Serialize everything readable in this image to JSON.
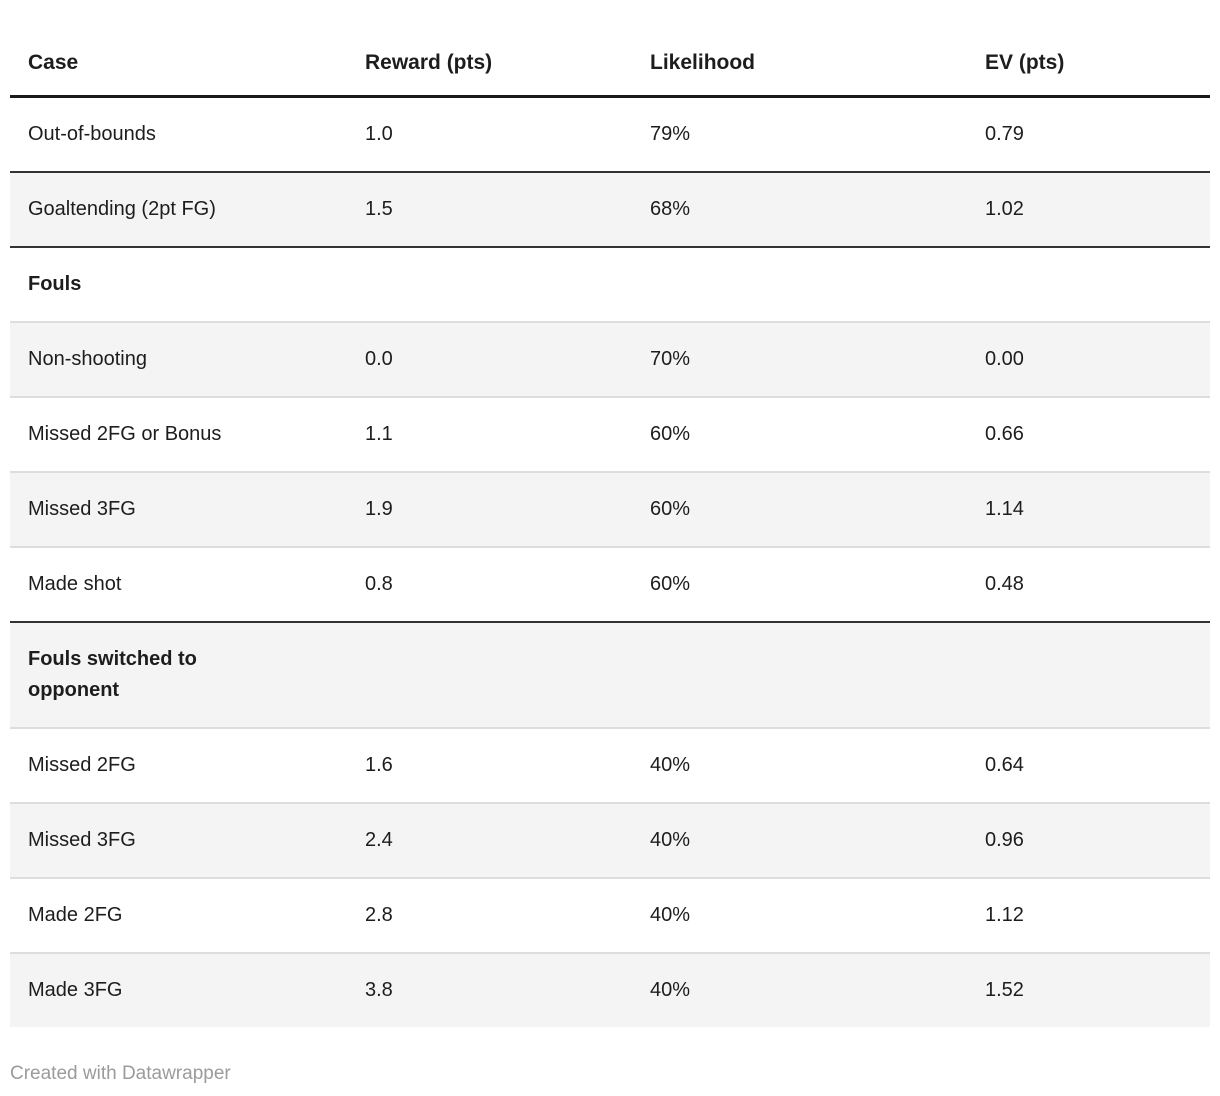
{
  "footer": {
    "attribution": "Created with Datawrapper"
  },
  "colors": {
    "text": "#1d1d1d",
    "muted": "#9b9b9b",
    "row_stripe": "#f4f4f4",
    "rule_dark": "#333333",
    "rule_header": "#1a1a1a",
    "rule_light": "#dddddd"
  },
  "chart_data": {
    "type": "table",
    "columns": [
      "Case",
      "Reward (pts)",
      "Likelihood",
      "EV (pts)"
    ],
    "rows": [
      {
        "case": "Out-of-bounds",
        "reward": "1.0",
        "likelihood": "79%",
        "ev": "0.79",
        "section": false,
        "shade": false,
        "border": "dark"
      },
      {
        "case": "Goaltending (2pt FG)",
        "reward": "1.5",
        "likelihood": "68%",
        "ev": "1.02",
        "section": false,
        "shade": true,
        "border": "dark"
      },
      {
        "case": "Fouls",
        "reward": "",
        "likelihood": "",
        "ev": "",
        "section": true,
        "shade": false,
        "border": "light"
      },
      {
        "case": "Non-shooting",
        "reward": "0.0",
        "likelihood": "70%",
        "ev": "0.00",
        "section": false,
        "shade": true,
        "border": "light"
      },
      {
        "case": "Missed 2FG or Bonus",
        "reward": "1.1",
        "likelihood": "60%",
        "ev": "0.66",
        "section": false,
        "shade": false,
        "border": "light"
      },
      {
        "case": "Missed 3FG",
        "reward": "1.9",
        "likelihood": "60%",
        "ev": "1.14",
        "section": false,
        "shade": true,
        "border": "light"
      },
      {
        "case": "Made shot",
        "reward": "0.8",
        "likelihood": "60%",
        "ev": "0.48",
        "section": false,
        "shade": false,
        "border": "dark"
      },
      {
        "case": "Fouls switched to opponent",
        "reward": "",
        "likelihood": "",
        "ev": "",
        "section": true,
        "shade": true,
        "border": "light"
      },
      {
        "case": "Missed 2FG",
        "reward": "1.6",
        "likelihood": "40%",
        "ev": "0.64",
        "section": false,
        "shade": false,
        "border": "light"
      },
      {
        "case": "Missed 3FG",
        "reward": "2.4",
        "likelihood": "40%",
        "ev": "0.96",
        "section": false,
        "shade": true,
        "border": "light"
      },
      {
        "case": "Made 2FG",
        "reward": "2.8",
        "likelihood": "40%",
        "ev": "1.12",
        "section": false,
        "shade": false,
        "border": "light"
      },
      {
        "case": "Made 3FG",
        "reward": "3.8",
        "likelihood": "40%",
        "ev": "1.52",
        "section": false,
        "shade": true,
        "border": "none"
      }
    ]
  }
}
